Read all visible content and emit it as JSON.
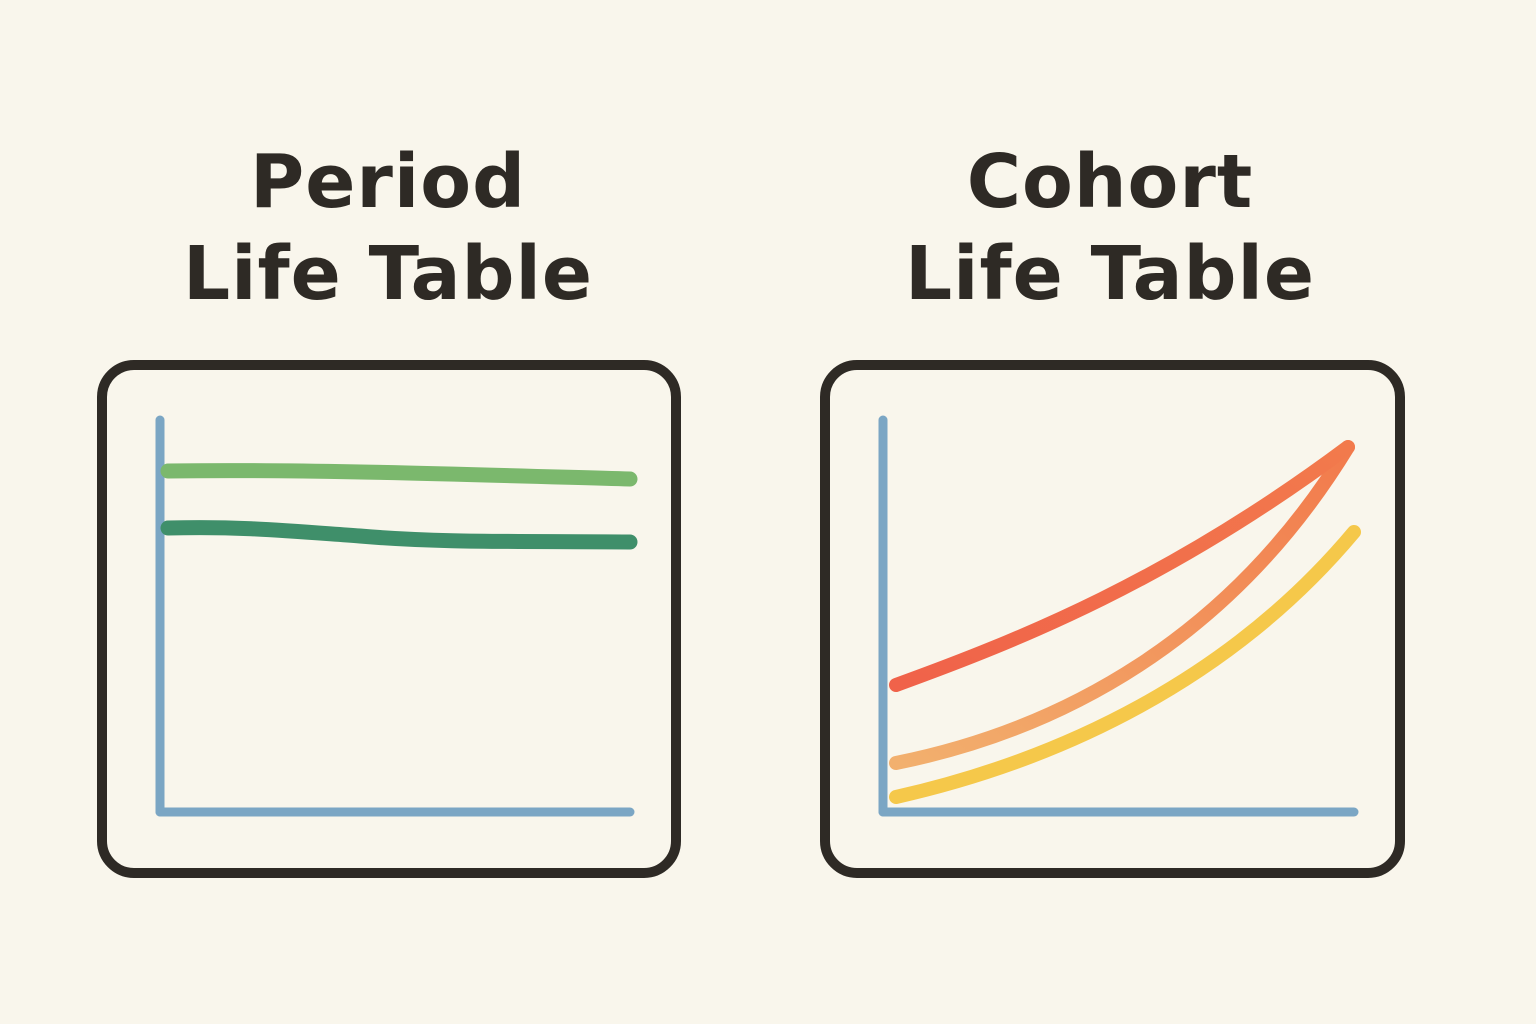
{
  "panels": [
    {
      "title_line1": "Period",
      "title_line2": "Life Table",
      "curves": [
        {
          "shape": "flat",
          "colors": [
            "#7bb86d"
          ]
        },
        {
          "shape": "flat",
          "colors": [
            "#3f8f6a"
          ]
        }
      ],
      "axis_color": "#7ba6c4",
      "frame_color": "#2e2a25"
    },
    {
      "title_line1": "Cohort",
      "title_line2": "Life Table",
      "curves": [
        {
          "shape": "rising",
          "colors": [
            "#f0624a",
            "#f27a4c"
          ]
        },
        {
          "shape": "rising",
          "colors": [
            "#f2b06e",
            "#f27a4c"
          ]
        },
        {
          "shape": "rising",
          "colors": [
            "#f5c84a",
            "#f5c84a"
          ]
        }
      ],
      "axis_color": "#7ba6c4",
      "frame_color": "#2e2a25"
    }
  ],
  "background": "#f9f6ec"
}
